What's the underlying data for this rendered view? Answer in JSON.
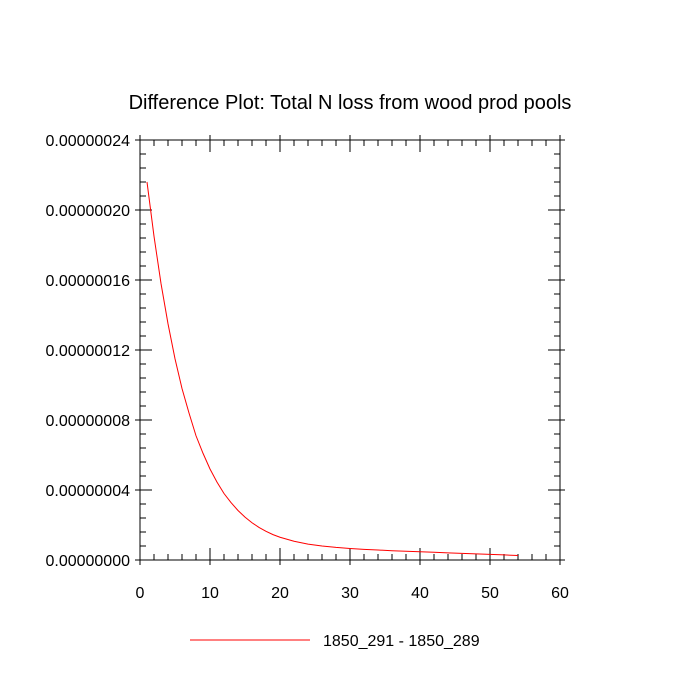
{
  "chart_data": {
    "type": "line",
    "title": "Difference Plot: Total N loss from wood prod pools",
    "xlabel": "",
    "ylabel": "",
    "xlim": [
      0,
      60
    ],
    "ylim": [
      0,
      2.4e-07
    ],
    "x_ticks": [
      0,
      10,
      20,
      30,
      40,
      50,
      60
    ],
    "x_tick_labels": [
      "0",
      "10",
      "20",
      "30",
      "40",
      "50",
      "60"
    ],
    "y_ticks": [
      0,
      4e-08,
      8e-08,
      1.2e-07,
      1.6e-07,
      2e-07,
      2.4e-07
    ],
    "y_tick_labels": [
      "0.00000000",
      "0.00000004",
      "0.00000008",
      "0.00000012",
      "0.00000016",
      "0.00000020",
      "0.00000024"
    ],
    "grid": false,
    "legend_position": "bottom-center",
    "series": [
      {
        "name": "1850_291 - 1850_289",
        "color": "#ff0000",
        "x": [
          1,
          2,
          3,
          4,
          5,
          6,
          7,
          8,
          9,
          10,
          11,
          12,
          13,
          14,
          15,
          16,
          17,
          18,
          19,
          20,
          22,
          24,
          26,
          28,
          30,
          32,
          34,
          36,
          38,
          40,
          42,
          44,
          46,
          48,
          50,
          52,
          54
        ],
        "y": [
          2.16e-07,
          1.85e-07,
          1.58e-07,
          1.35e-07,
          1.15e-07,
          9.8e-08,
          8.4e-08,
          7.1e-08,
          6.1e-08,
          5.2e-08,
          4.45e-08,
          3.8e-08,
          3.28e-08,
          2.83e-08,
          2.45e-08,
          2.13e-08,
          1.86e-08,
          1.64e-08,
          1.45e-08,
          1.3e-08,
          1.07e-08,
          9.1e-09,
          8e-09,
          7.2e-09,
          6.6e-09,
          6.1e-09,
          5.7e-09,
          5.3e-09,
          5e-09,
          4.7e-09,
          4.4e-09,
          4.1e-09,
          3.8e-09,
          3.5e-09,
          3.2e-09,
          2.9e-09,
          2.6e-09
        ]
      }
    ]
  }
}
